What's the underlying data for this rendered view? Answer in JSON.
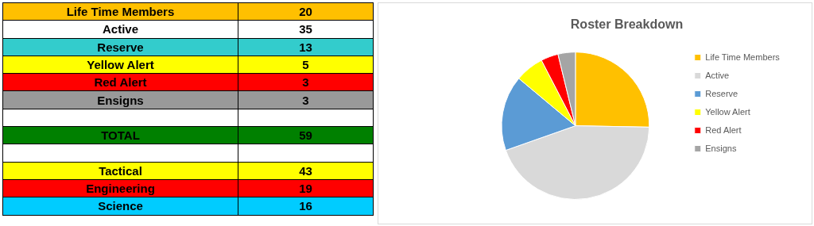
{
  "chart_data": [
    {
      "type": "other",
      "data_labels": true,
      "categories": [
        "Life Time Members",
        "Active",
        "Reserve",
        "Yellow Alert",
        "Red Alert",
        "Ensigns",
        null,
        "TOTAL",
        null,
        "Tactical",
        "Engineering",
        "Science"
      ],
      "values": [
        20,
        35,
        13,
        5,
        3,
        3,
        null,
        59,
        null,
        43,
        19,
        16
      ],
      "colors": [
        "#ffc000",
        "#ffffff",
        "#33cccc",
        "#ffff00",
        "#ff0000",
        "#999999",
        "#ffffff",
        "#008000",
        "#ffffff",
        "#ffff00",
        "#ff0000",
        "#00ccff"
      ]
    },
    {
      "type": "pie",
      "title": "Roster Breakdown",
      "legend": "right",
      "categories": [
        "Life Time Members",
        "Active",
        "Reserve",
        "Yellow Alert",
        "Red Alert",
        "Ensigns"
      ],
      "values": [
        25.3,
        44.3,
        16.5,
        6.3,
        3.8,
        3.8
      ],
      "colors": [
        "#ffc000",
        "#d9d9d9",
        "#5b9bd5",
        "#ffff00",
        "#ff0000",
        "#a5a5a5"
      ]
    }
  ]
}
